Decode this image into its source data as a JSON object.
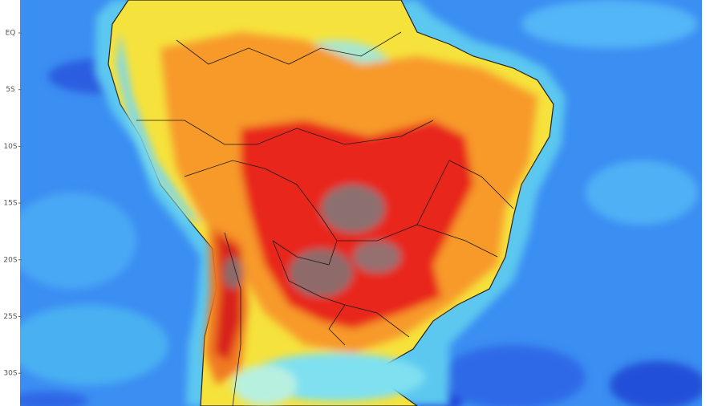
{
  "map": {
    "latitude_labels": [
      "EQ",
      "5S",
      "10S",
      "15S",
      "20S",
      "25S",
      "30S"
    ]
  }
}
